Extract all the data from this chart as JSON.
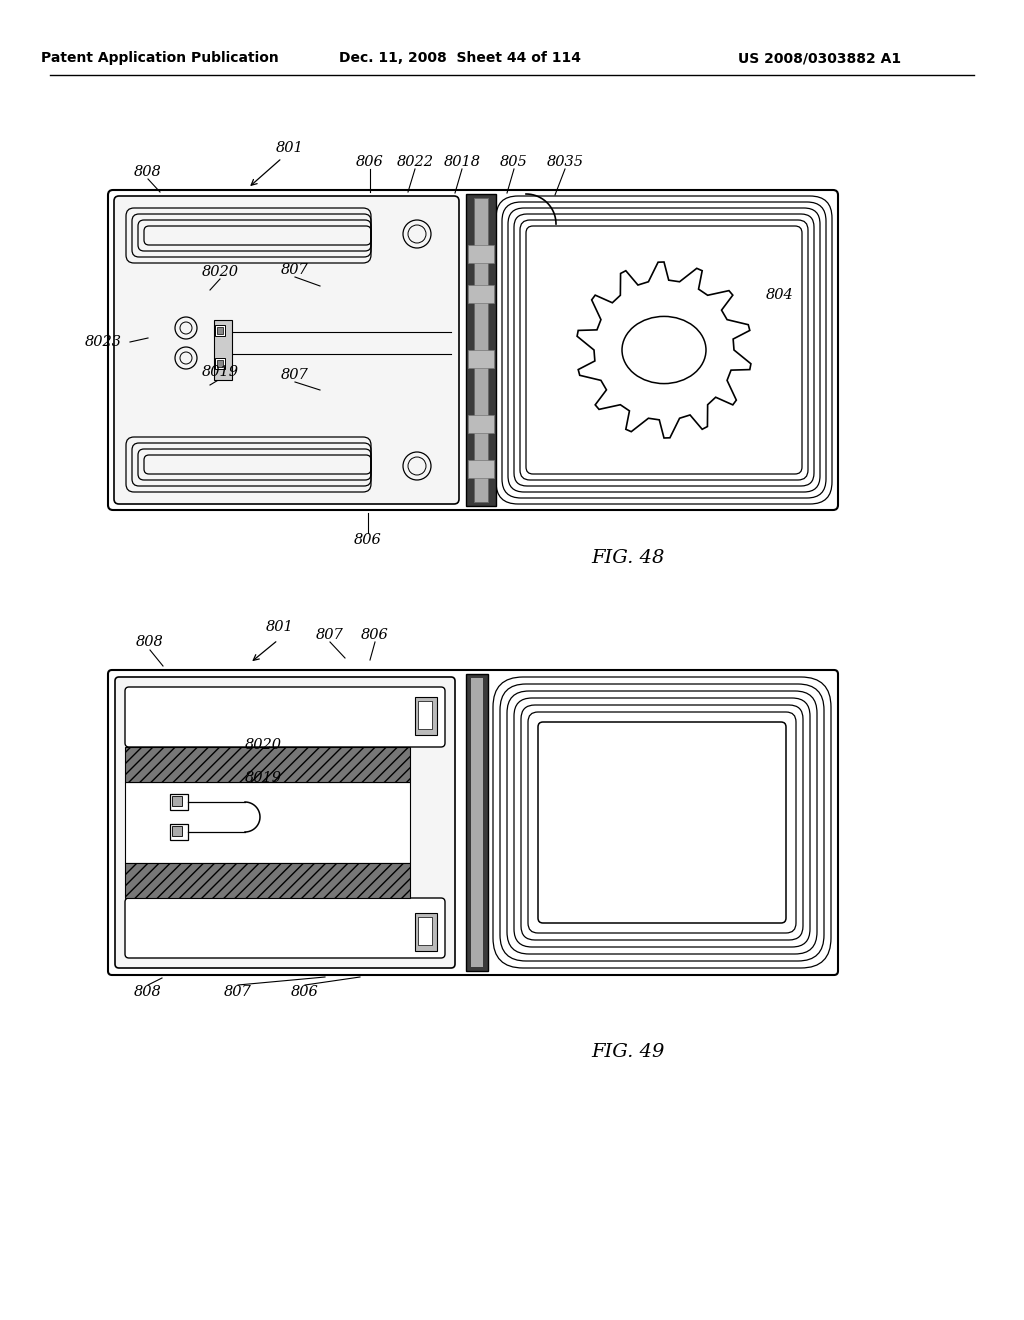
{
  "header_left": "Patent Application Publication",
  "header_center": "Dec. 11, 2008  Sheet 44 of 114",
  "header_right": "US 2008/0303882 A1",
  "fig48_label": "FIG. 48",
  "fig49_label": "FIG. 49",
  "background_color": "#ffffff"
}
